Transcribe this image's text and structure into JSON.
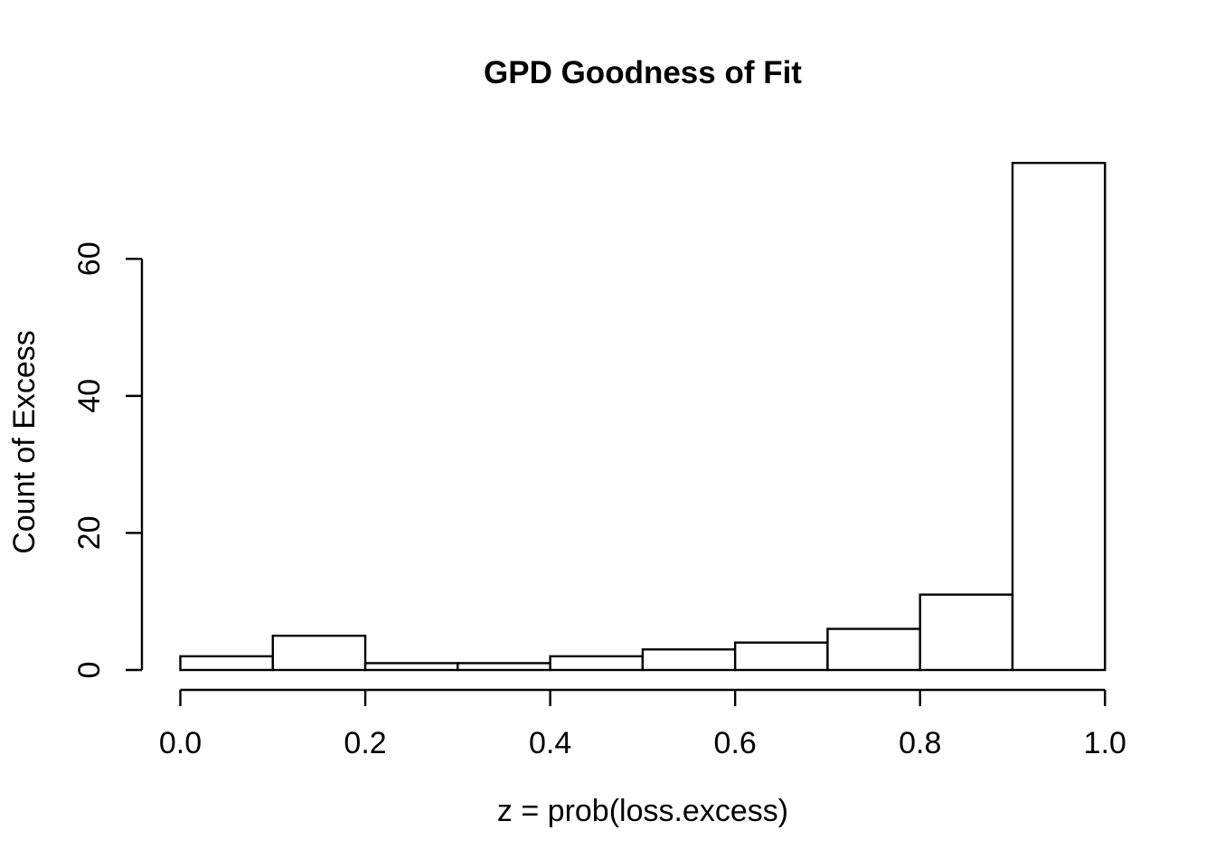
{
  "chart_data": {
    "type": "bar",
    "subtype": "histogram",
    "title": "GPD Goodness of Fit",
    "xlabel": "z = prob(loss.excess)",
    "ylabel": "Count of Excess",
    "bins": {
      "start": 0.0,
      "width": 0.1,
      "count": 10
    },
    "bin_edges": [
      0.0,
      0.1,
      0.2,
      0.3,
      0.4,
      0.5,
      0.6,
      0.7,
      0.8,
      0.9,
      1.0
    ],
    "values": [
      2,
      5,
      1,
      1,
      2,
      3,
      4,
      6,
      11,
      74
    ],
    "xlim": [
      0.0,
      1.0
    ],
    "ylim": [
      0,
      60
    ],
    "x_ticks": [
      {
        "value": 0.0,
        "label": "0.0"
      },
      {
        "value": 0.2,
        "label": "0.2"
      },
      {
        "value": 0.4,
        "label": "0.4"
      },
      {
        "value": 0.6,
        "label": "0.6"
      },
      {
        "value": 0.8,
        "label": "0.8"
      },
      {
        "value": 1.0,
        "label": "1.0"
      }
    ],
    "y_ticks": [
      {
        "value": 0,
        "label": "0"
      },
      {
        "value": 20,
        "label": "20"
      },
      {
        "value": 40,
        "label": "40"
      },
      {
        "value": 60,
        "label": "60"
      }
    ],
    "grid": "off",
    "legend": "none",
    "colors": {
      "background": "#ffffff",
      "bar_fill": "#ffffff",
      "bar_stroke": "#000000",
      "axis": "#000000",
      "text": "#000000"
    }
  }
}
